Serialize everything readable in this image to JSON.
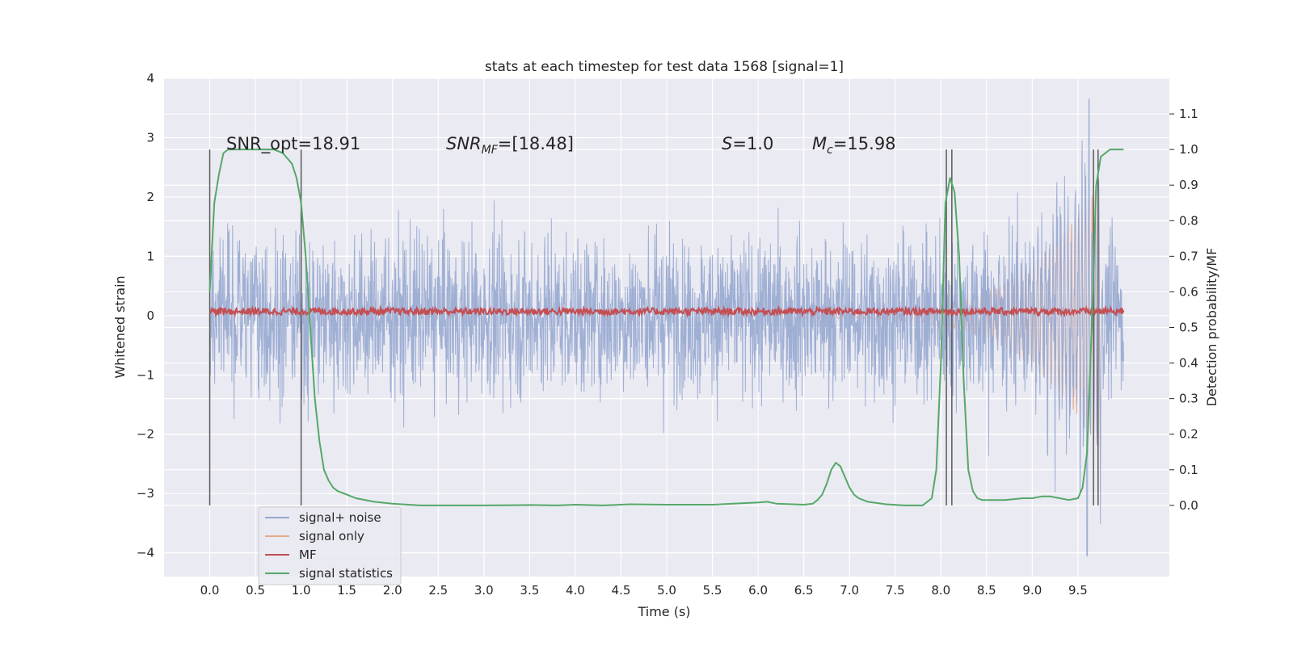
{
  "chart_data": {
    "type": "line",
    "title": "stats at each timestep for test data 1568 [signal=1]",
    "xlabel": "Time (s)",
    "ylabel": "Whitened strain",
    "ylabel_right": "Detection probability/MF",
    "xlim": [
      -0.5,
      10.5
    ],
    "ylim": [
      -4.4,
      4.0
    ],
    "ylim_right": [
      -0.2,
      1.2
    ],
    "xticks": [
      "0.0",
      "0.5",
      "1.0",
      "1.5",
      "2.0",
      "2.5",
      "3.0",
      "3.5",
      "4.0",
      "4.5",
      "5.0",
      "5.5",
      "6.0",
      "6.5",
      "7.0",
      "7.5",
      "8.0",
      "8.5",
      "9.0",
      "9.5"
    ],
    "yticks": [
      "4",
      "3",
      "2",
      "1",
      "0",
      "−1",
      "−2",
      "−3",
      "−4"
    ],
    "yticks_right": [
      "1.1",
      "1.0",
      "0.9",
      "0.8",
      "0.7",
      "0.6",
      "0.5",
      "0.4",
      "0.3",
      "0.2",
      "0.1",
      "0.0"
    ],
    "grid": true,
    "legend_position": "lower-left",
    "annotations": [
      {
        "text": "SNR_opt=18.91",
        "x": 0.2,
        "y": 2.95
      },
      {
        "text": "SNR_MF=[18.48]",
        "x": 2.6,
        "y": 2.95,
        "italic_part": "SNR",
        "subscript": "MF",
        "rest": "=[18.48]"
      },
      {
        "text": "S=1.0",
        "x": 5.6,
        "y": 2.95,
        "italic_part": "S",
        "rest": "=1.0"
      },
      {
        "text": "M_c=15.98",
        "x": 6.6,
        "y": 2.95,
        "italic_part": "M",
        "subscript": "c",
        "rest": "=15.98"
      }
    ],
    "vertical_lines": [
      0.0,
      1.0,
      8.06,
      8.12,
      9.67,
      9.72
    ],
    "vertical_line_range": [
      -3.2,
      2.8
    ],
    "series": [
      {
        "name": "signal+ noise",
        "color": "#97a8d0",
        "kind": "noise",
        "x_range": [
          0.0,
          10.0
        ],
        "band": [
          -1.0,
          1.0
        ],
        "extreme_min": -4.05,
        "extreme_max": 3.65
      },
      {
        "name": "signal only",
        "color": "#e8a98e",
        "kind": "chirp",
        "x_range": [
          6.4,
          9.75
        ],
        "amplitude_start": 0.05,
        "amplitude_end": 2.3
      },
      {
        "name": "MF",
        "color": "#c44e52",
        "kind": "noise-flat",
        "x_range": [
          0.0,
          10.0
        ],
        "center": 0.07,
        "jitter": 0.06
      },
      {
        "name": "signal statistics",
        "color": "#55a868",
        "axis": "right",
        "x": [
          0.0,
          0.05,
          0.1,
          0.15,
          0.2,
          0.3,
          0.4,
          0.5,
          0.6,
          0.7,
          0.8,
          0.9,
          0.95,
          1.0,
          1.05,
          1.1,
          1.15,
          1.2,
          1.25,
          1.3,
          1.35,
          1.4,
          1.5,
          1.6,
          1.8,
          2.0,
          2.3,
          2.6,
          3.0,
          3.5,
          3.8,
          4.0,
          4.3,
          4.6,
          5.0,
          5.5,
          6.0,
          6.1,
          6.2,
          6.5,
          6.6,
          6.65,
          6.7,
          6.75,
          6.8,
          6.85,
          6.9,
          6.95,
          7.0,
          7.05,
          7.1,
          7.2,
          7.4,
          7.6,
          7.8,
          7.9,
          7.95,
          8.0,
          8.05,
          8.1,
          8.15,
          8.2,
          8.25,
          8.3,
          8.35,
          8.4,
          8.45,
          8.5,
          8.7,
          8.9,
          9.0,
          9.1,
          9.2,
          9.3,
          9.4,
          9.5,
          9.55,
          9.6,
          9.65,
          9.7,
          9.75,
          9.8,
          9.85,
          9.9,
          9.95,
          10.0
        ],
        "y": [
          0.6,
          0.85,
          0.93,
          0.99,
          1.0,
          1.0,
          1.0,
          1.0,
          1.0,
          1.0,
          0.99,
          0.96,
          0.92,
          0.85,
          0.7,
          0.5,
          0.3,
          0.18,
          0.1,
          0.07,
          0.05,
          0.04,
          0.03,
          0.02,
          0.01,
          0.005,
          0.0,
          0.0,
          0.0,
          0.001,
          0.0,
          0.002,
          0.0,
          0.003,
          0.002,
          0.002,
          0.008,
          0.01,
          0.005,
          0.002,
          0.005,
          0.015,
          0.03,
          0.06,
          0.1,
          0.12,
          0.11,
          0.08,
          0.05,
          0.03,
          0.02,
          0.01,
          0.003,
          0.0,
          0.0,
          0.02,
          0.1,
          0.4,
          0.85,
          0.92,
          0.88,
          0.7,
          0.35,
          0.1,
          0.04,
          0.02,
          0.015,
          0.015,
          0.015,
          0.02,
          0.02,
          0.025,
          0.025,
          0.02,
          0.015,
          0.02,
          0.05,
          0.15,
          0.5,
          0.9,
          0.98,
          0.99,
          1.0,
          1.0,
          1.0,
          1.0
        ]
      }
    ]
  }
}
